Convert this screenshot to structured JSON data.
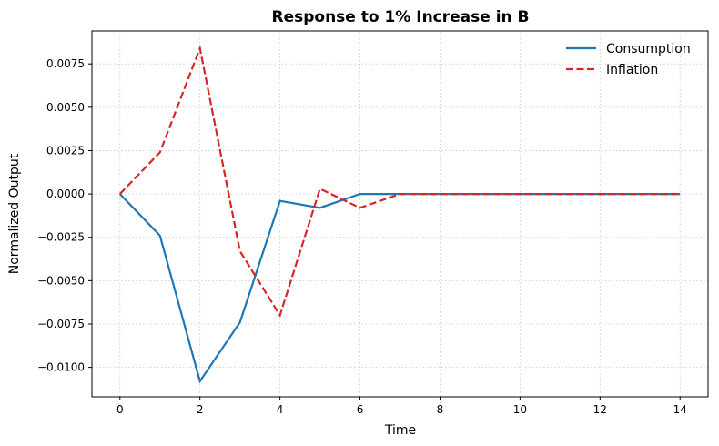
{
  "chart_data": {
    "type": "line",
    "title": "Response to 1% Increase in B",
    "xlabel": "Time",
    "ylabel": "Normalized Output",
    "xlim": [
      -0.7,
      14.7
    ],
    "ylim": [
      -0.0117,
      0.0094
    ],
    "xticks": [
      0,
      2,
      4,
      6,
      8,
      10,
      12,
      14
    ],
    "yticks": [
      -0.01,
      -0.0075,
      -0.005,
      -0.0025,
      0.0,
      0.0025,
      0.005,
      0.0075
    ],
    "xtick_labels": [
      "0",
      "2",
      "4",
      "6",
      "8",
      "10",
      "12",
      "14"
    ],
    "ytick_labels": [
      "−0.0100",
      "−0.0075",
      "−0.0050",
      "−0.0025",
      "0.0000",
      "0.0025",
      "0.0050",
      "0.0075"
    ],
    "grid": true,
    "legend_position": "top-right",
    "x": [
      0,
      1,
      2,
      3,
      4,
      5,
      6,
      7,
      8,
      9,
      10,
      11,
      12,
      13,
      14
    ],
    "series": [
      {
        "name": "Consumption",
        "color": "#1f77b4",
        "style": "solid",
        "values": [
          0.0,
          -0.0024,
          -0.0108,
          -0.0074,
          -0.0004,
          -0.0008,
          0.0,
          0.0,
          0.0,
          0.0,
          0.0,
          0.0,
          0.0,
          0.0,
          0.0
        ]
      },
      {
        "name": "Inflation",
        "color": "#d62728",
        "style": "dashed",
        "values": [
          0.0,
          0.0024,
          0.0084,
          -0.0033,
          -0.007,
          0.0003,
          -0.0008,
          0.0,
          0.0,
          0.0,
          0.0,
          0.0,
          0.0,
          0.0,
          0.0
        ]
      }
    ]
  }
}
